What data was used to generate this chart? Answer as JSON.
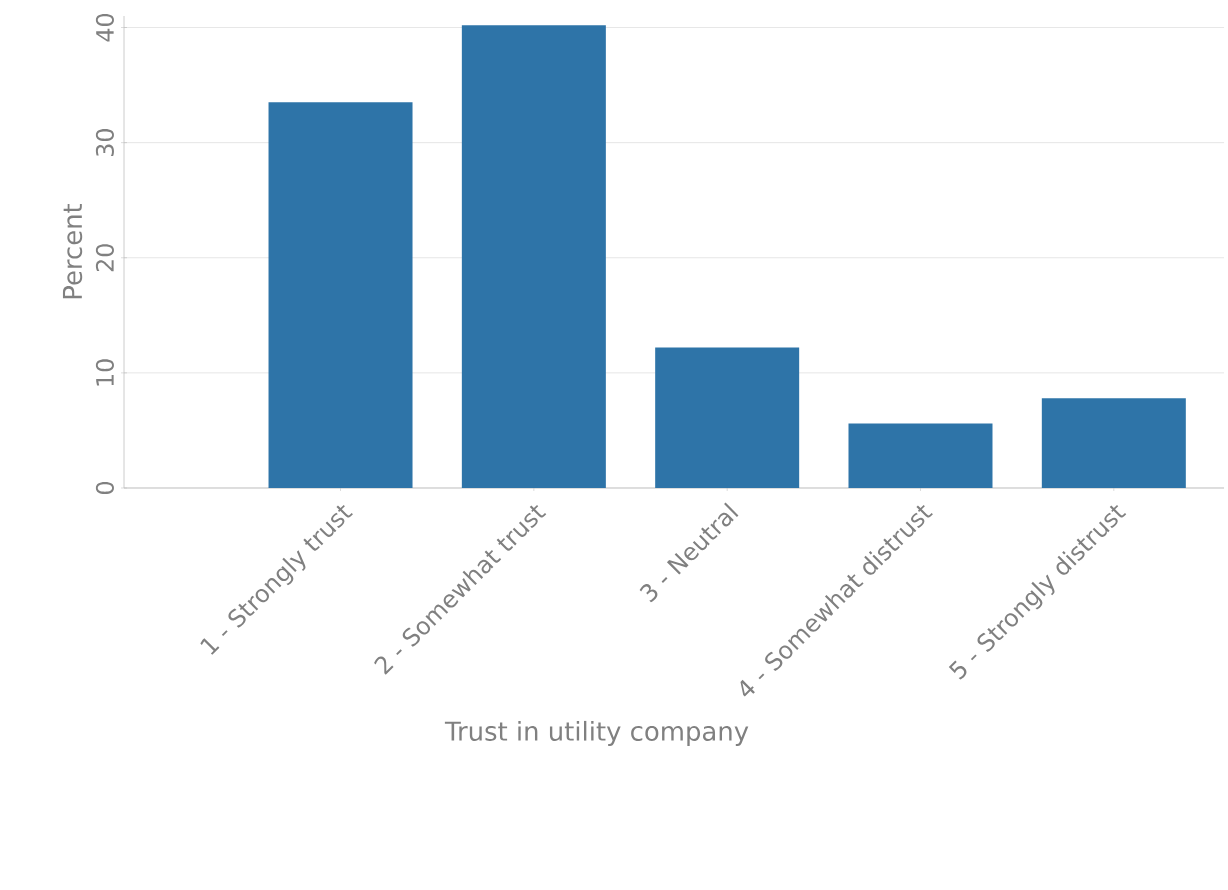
{
  "chart_data": {
    "type": "bar",
    "xlabel": "Trust in utility company",
    "ylabel": "Percent",
    "categories": [
      "1 - Strongly trust",
      "2 - Somewhat trust",
      "3 - Neutral",
      "4 - Somewhat distrust",
      "5 - Strongly distrust"
    ],
    "values": [
      33.5,
      40.2,
      12.2,
      5.6,
      7.8
    ],
    "color": "#2e74a8",
    "ylim": [
      0,
      41
    ],
    "yticks": [
      0,
      10,
      20,
      30,
      40
    ],
    "grid": "y"
  }
}
